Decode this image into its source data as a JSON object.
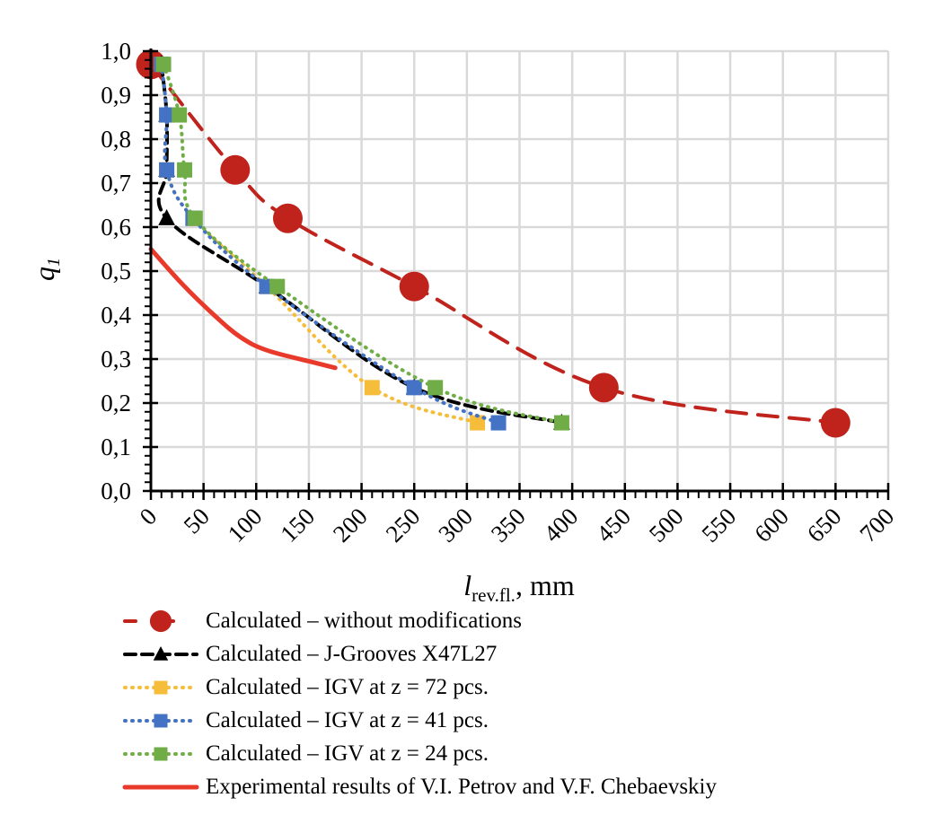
{
  "chart_data": {
    "type": "line",
    "title": "",
    "xlabel": "l",
    "xlabel_subscript": "rev.fl.",
    "xlabel_unit": ", mm",
    "ylabel": "q",
    "ylabel_subscript": "1",
    "xlim": [
      0,
      700
    ],
    "ylim": [
      0.0,
      1.0
    ],
    "x_ticks": [
      "0",
      "50",
      "100",
      "150",
      "200",
      "250",
      "300",
      "350",
      "400",
      "450",
      "500",
      "550",
      "600",
      "650",
      "700"
    ],
    "y_ticks": [
      "0,0",
      "0,1",
      "0,2",
      "0,3",
      "0,4",
      "0,5",
      "0,6",
      "0,7",
      "0,8",
      "0,9",
      "1,0"
    ],
    "grid": true,
    "legend_position": "below",
    "series": [
      {
        "name": "Calculated – without modifications",
        "color": "#c0221c",
        "line": "dashed",
        "marker": "circle",
        "x": [
          0,
          80,
          130,
          250,
          430,
          650
        ],
        "y": [
          0.97,
          0.73,
          0.62,
          0.465,
          0.235,
          0.155
        ]
      },
      {
        "name": "Calculated – J-Grooves X47L27",
        "color": "#000000",
        "line": "dashed-short",
        "marker": "triangle",
        "x": [
          10,
          15,
          15,
          15,
          110,
          250,
          390
        ],
        "y": [
          0.97,
          0.855,
          0.73,
          0.62,
          0.465,
          0.235,
          0.155
        ]
      },
      {
        "name": "Calculated – IGV at z = 72 pcs.",
        "color": "#f5bd3a",
        "line": "dotted",
        "marker": "square",
        "x": [
          10,
          15,
          15,
          40,
          110,
          210,
          310
        ],
        "y": [
          0.97,
          0.855,
          0.73,
          0.62,
          0.465,
          0.235,
          0.155
        ]
      },
      {
        "name": "Calculated – IGV at z = 41 pcs.",
        "color": "#4472c4",
        "line": "dotted",
        "marker": "square",
        "x": [
          10,
          15,
          15,
          40,
          110,
          250,
          330
        ],
        "y": [
          0.97,
          0.855,
          0.73,
          0.62,
          0.465,
          0.235,
          0.155
        ]
      },
      {
        "name": "Calculated – IGV at z = 24 pcs.",
        "color": "#70ad47",
        "line": "dotted",
        "marker": "square",
        "x": [
          12,
          27,
          32,
          42,
          120,
          270,
          390
        ],
        "y": [
          0.97,
          0.855,
          0.73,
          0.62,
          0.465,
          0.235,
          0.155
        ]
      },
      {
        "name": "Experimental results of V.I. Petrov and V.F. Chebaevskiy",
        "color": "#e8392b",
        "line": "solid",
        "marker": "none",
        "x": [
          0,
          30,
          60,
          85,
          110,
          150,
          175
        ],
        "y": [
          0.55,
          0.47,
          0.4,
          0.35,
          0.32,
          0.295,
          0.28
        ]
      }
    ]
  }
}
